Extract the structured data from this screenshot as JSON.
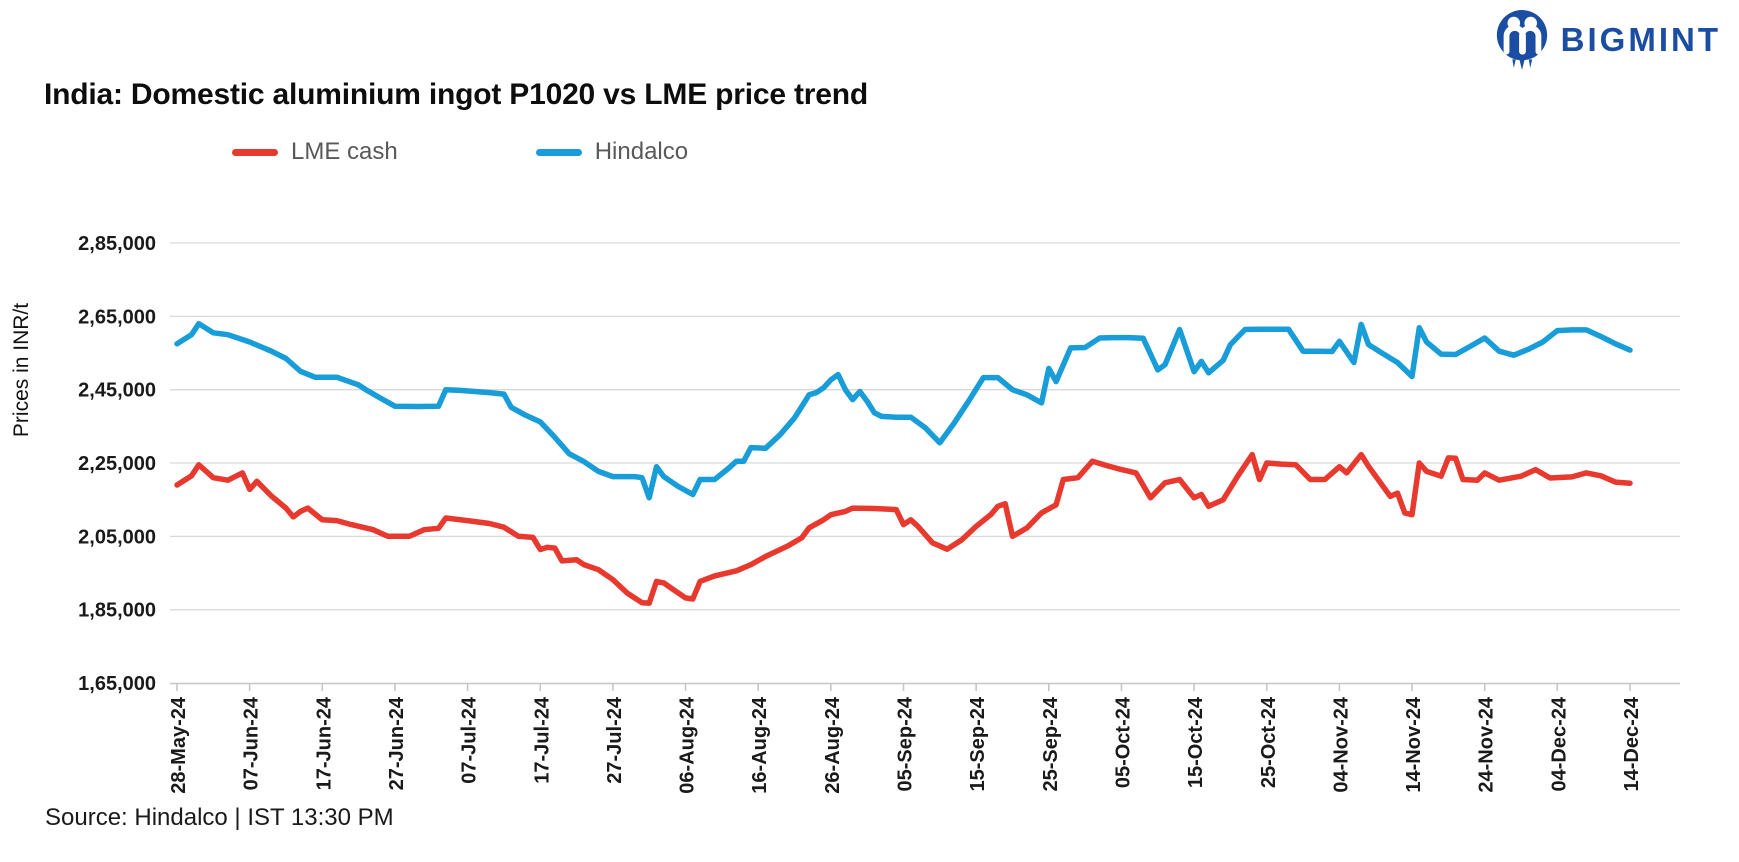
{
  "logo": {
    "text": "BIGMINT",
    "color": "#1b4ea3"
  },
  "title": {
    "text": "India: Domestic aluminium ingot P1020 vs LME price trend"
  },
  "source": {
    "text": "Source: Hindalco | IST 13:30 PM"
  },
  "y_axis": {
    "title": "Prices in INR/t",
    "min": 165000,
    "max": 285000,
    "step": 20000,
    "tick_labels": [
      "1,65,000",
      "1,85,000",
      "2,05,000",
      "2,25,000",
      "2,45,000",
      "2,65,000",
      "2,85,000"
    ]
  },
  "x_axis": {
    "unit": "days since 28-May-24",
    "ticks": [
      {
        "offset": 0,
        "label": "28-May-24"
      },
      {
        "offset": 10,
        "label": "07-Jun-24"
      },
      {
        "offset": 20,
        "label": "17-Jun-24"
      },
      {
        "offset": 30,
        "label": "27-Jun-24"
      },
      {
        "offset": 40,
        "label": "07-Jul-24"
      },
      {
        "offset": 50,
        "label": "17-Jul-24"
      },
      {
        "offset": 60,
        "label": "27-Jul-24"
      },
      {
        "offset": 70,
        "label": "06-Aug-24"
      },
      {
        "offset": 80,
        "label": "16-Aug-24"
      },
      {
        "offset": 90,
        "label": "26-Aug-24"
      },
      {
        "offset": 100,
        "label": "05-Sep-24"
      },
      {
        "offset": 110,
        "label": "15-Sep-24"
      },
      {
        "offset": 120,
        "label": "25-Sep-24"
      },
      {
        "offset": 130,
        "label": "05-Oct-24"
      },
      {
        "offset": 140,
        "label": "15-Oct-24"
      },
      {
        "offset": 150,
        "label": "25-Oct-24"
      },
      {
        "offset": 160,
        "label": "04-Nov-24"
      },
      {
        "offset": 170,
        "label": "14-Nov-24"
      },
      {
        "offset": 180,
        "label": "24-Nov-24"
      },
      {
        "offset": 190,
        "label": "04-Dec-24"
      },
      {
        "offset": 200,
        "label": "14-Dec-24"
      }
    ]
  },
  "chart_data": {
    "type": "line",
    "title": "India: Domestic aluminium ingot P1020 vs LME price trend",
    "ylabel": "Prices in INR/t",
    "ylim": [
      165000,
      285000
    ],
    "grid": true,
    "legend_position": "top-left",
    "x_unit": "days since 28-May-2024 (offsets; ticks every 10 days from 28-May-24 to 14-Dec-24)",
    "series": [
      {
        "name": "LME cash",
        "color": "#e8392f",
        "points": [
          [
            0,
            219000
          ],
          [
            2,
            221500
          ],
          [
            3,
            224500
          ],
          [
            5,
            221000
          ],
          [
            7,
            220300
          ],
          [
            9,
            222300
          ],
          [
            10,
            217800
          ],
          [
            11,
            220000
          ],
          [
            13,
            216000
          ],
          [
            15,
            212700
          ],
          [
            16,
            210300
          ],
          [
            17,
            211800
          ],
          [
            18,
            212700
          ],
          [
            20,
            209500
          ],
          [
            22,
            209300
          ],
          [
            24,
            208200
          ],
          [
            27,
            206800
          ],
          [
            29,
            205000
          ],
          [
            32,
            205000
          ],
          [
            34,
            206800
          ],
          [
            36,
            207200
          ],
          [
            37,
            210000
          ],
          [
            40,
            209300
          ],
          [
            43,
            208500
          ],
          [
            45,
            207500
          ],
          [
            47,
            205000
          ],
          [
            49,
            204700
          ],
          [
            50,
            201400
          ],
          [
            51,
            202000
          ],
          [
            52,
            201800
          ],
          [
            53,
            198300
          ],
          [
            55,
            198600
          ],
          [
            56,
            197300
          ],
          [
            58,
            195900
          ],
          [
            60,
            193200
          ],
          [
            62,
            189500
          ],
          [
            64,
            186900
          ],
          [
            65,
            186800
          ],
          [
            66,
            192700
          ],
          [
            67,
            192300
          ],
          [
            68,
            190900
          ],
          [
            70,
            188200
          ],
          [
            71,
            187900
          ],
          [
            72,
            192700
          ],
          [
            74,
            194200
          ],
          [
            77,
            195600
          ],
          [
            79,
            197300
          ],
          [
            81,
            199500
          ],
          [
            84,
            202300
          ],
          [
            86,
            204600
          ],
          [
            87,
            207300
          ],
          [
            89,
            209500
          ],
          [
            90,
            210900
          ],
          [
            92,
            211800
          ],
          [
            93,
            212700
          ],
          [
            96,
            212600
          ],
          [
            99,
            212300
          ],
          [
            100,
            208200
          ],
          [
            101,
            209500
          ],
          [
            102,
            207700
          ],
          [
            104,
            203200
          ],
          [
            106,
            201500
          ],
          [
            108,
            204000
          ],
          [
            110,
            207700
          ],
          [
            112,
            210900
          ],
          [
            113,
            213200
          ],
          [
            114,
            213900
          ],
          [
            115,
            205000
          ],
          [
            117,
            207300
          ],
          [
            119,
            211400
          ],
          [
            121,
            213600
          ],
          [
            122,
            220500
          ],
          [
            124,
            221000
          ],
          [
            126,
            225500
          ],
          [
            128,
            224300
          ],
          [
            130,
            223200
          ],
          [
            132,
            222300
          ],
          [
            134,
            215500
          ],
          [
            136,
            219600
          ],
          [
            138,
            220500
          ],
          [
            140,
            215500
          ],
          [
            141,
            216400
          ],
          [
            142,
            213200
          ],
          [
            144,
            215000
          ],
          [
            146,
            221400
          ],
          [
            148,
            227300
          ],
          [
            149,
            220500
          ],
          [
            150,
            225000
          ],
          [
            152,
            224700
          ],
          [
            154,
            224500
          ],
          [
            156,
            220500
          ],
          [
            158,
            220500
          ],
          [
            160,
            224000
          ],
          [
            161,
            222300
          ],
          [
            163,
            227300
          ],
          [
            164,
            224100
          ],
          [
            167,
            215900
          ],
          [
            168,
            216800
          ],
          [
            169,
            211400
          ],
          [
            170,
            210900
          ],
          [
            171,
            225000
          ],
          [
            172,
            222700
          ],
          [
            174,
            221400
          ],
          [
            175,
            226400
          ],
          [
            176,
            226300
          ],
          [
            177,
            220500
          ],
          [
            179,
            220300
          ],
          [
            180,
            222300
          ],
          [
            182,
            220300
          ],
          [
            185,
            221400
          ],
          [
            187,
            223200
          ],
          [
            189,
            220900
          ],
          [
            192,
            221200
          ],
          [
            194,
            222300
          ],
          [
            196,
            221500
          ],
          [
            198,
            219800
          ],
          [
            200,
            219500
          ]
        ]
      },
      {
        "name": "Hindalco",
        "color": "#189dd9",
        "points": [
          [
            0,
            257500
          ],
          [
            2,
            260000
          ],
          [
            3,
            263000
          ],
          [
            5,
            260500
          ],
          [
            7,
            260000
          ],
          [
            10,
            258000
          ],
          [
            13,
            255500
          ],
          [
            15,
            253500
          ],
          [
            17,
            250000
          ],
          [
            19,
            248400
          ],
          [
            22,
            248400
          ],
          [
            25,
            246300
          ],
          [
            26,
            245000
          ],
          [
            28,
            242700
          ],
          [
            30,
            240500
          ],
          [
            33,
            240400
          ],
          [
            36,
            240500
          ],
          [
            37,
            245000
          ],
          [
            39,
            244800
          ],
          [
            41,
            244500
          ],
          [
            43,
            244200
          ],
          [
            45,
            243800
          ],
          [
            46,
            240200
          ],
          [
            48,
            238000
          ],
          [
            50,
            236200
          ],
          [
            52,
            232000
          ],
          [
            54,
            227500
          ],
          [
            56,
            225400
          ],
          [
            58,
            222700
          ],
          [
            60,
            221300
          ],
          [
            63,
            221300
          ],
          [
            64,
            221000
          ],
          [
            65,
            215500
          ],
          [
            66,
            224000
          ],
          [
            67,
            221300
          ],
          [
            69,
            218600
          ],
          [
            71,
            216400
          ],
          [
            72,
            220500
          ],
          [
            74,
            220500
          ],
          [
            76,
            223700
          ],
          [
            77,
            225500
          ],
          [
            78,
            225500
          ],
          [
            79,
            229200
          ],
          [
            81,
            229000
          ],
          [
            83,
            232700
          ],
          [
            84,
            235000
          ],
          [
            85,
            237300
          ],
          [
            86,
            240400
          ],
          [
            87,
            243600
          ],
          [
            88,
            244200
          ],
          [
            89,
            245500
          ],
          [
            90,
            247700
          ],
          [
            91,
            249100
          ],
          [
            92,
            245000
          ],
          [
            93,
            242300
          ],
          [
            94,
            244500
          ],
          [
            95,
            241800
          ],
          [
            96,
            238700
          ],
          [
            97,
            237700
          ],
          [
            99,
            237500
          ],
          [
            101,
            237500
          ],
          [
            103,
            234600
          ],
          [
            105,
            230500
          ],
          [
            107,
            236000
          ],
          [
            109,
            242000
          ],
          [
            111,
            248300
          ],
          [
            113,
            248300
          ],
          [
            115,
            245000
          ],
          [
            117,
            243600
          ],
          [
            119,
            241400
          ],
          [
            120,
            250800
          ],
          [
            121,
            247200
          ],
          [
            123,
            256400
          ],
          [
            125,
            256500
          ],
          [
            127,
            259100
          ],
          [
            129,
            259200
          ],
          [
            131,
            259200
          ],
          [
            133,
            259000
          ],
          [
            135,
            250400
          ],
          [
            136,
            251800
          ],
          [
            138,
            261400
          ],
          [
            140,
            249900
          ],
          [
            141,
            252700
          ],
          [
            142,
            249600
          ],
          [
            144,
            253000
          ],
          [
            145,
            257300
          ],
          [
            147,
            261400
          ],
          [
            149,
            261500
          ],
          [
            151,
            261500
          ],
          [
            153,
            261500
          ],
          [
            155,
            255500
          ],
          [
            157,
            255500
          ],
          [
            159,
            255400
          ],
          [
            160,
            258200
          ],
          [
            162,
            252400
          ],
          [
            163,
            262800
          ],
          [
            164,
            257300
          ],
          [
            166,
            254800
          ],
          [
            168,
            252400
          ],
          [
            169,
            250500
          ],
          [
            170,
            248600
          ],
          [
            171,
            261900
          ],
          [
            172,
            258000
          ],
          [
            174,
            254700
          ],
          [
            176,
            254600
          ],
          [
            178,
            256800
          ],
          [
            180,
            259100
          ],
          [
            182,
            255500
          ],
          [
            184,
            254400
          ],
          [
            186,
            256000
          ],
          [
            188,
            258000
          ],
          [
            190,
            261100
          ],
          [
            192,
            261300
          ],
          [
            194,
            261300
          ],
          [
            196,
            259500
          ],
          [
            198,
            257500
          ],
          [
            200,
            255800
          ]
        ]
      }
    ]
  }
}
